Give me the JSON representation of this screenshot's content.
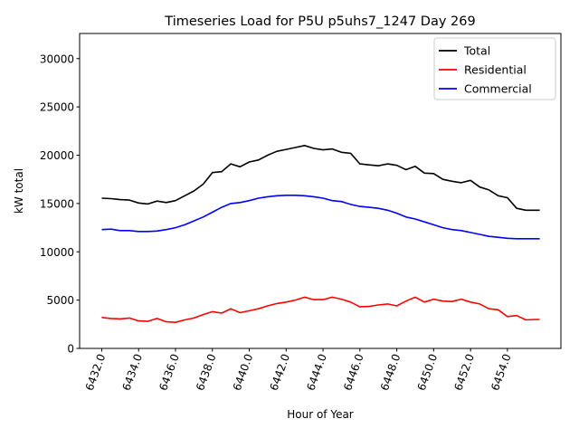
{
  "chart_data": {
    "type": "line",
    "title": "Timeseries Load for P5U p5uhs7_1247  Day 269",
    "xlabel": "Hour of Year",
    "ylabel": "kW total",
    "xlim": [
      6430.8,
      6456.9
    ],
    "ylim": [
      0,
      32600
    ],
    "xticks": [
      6432,
      6434,
      6436,
      6438,
      6440,
      6442,
      6444,
      6446,
      6448,
      6450,
      6452,
      6454
    ],
    "xtick_labels": [
      "6432.0",
      "6434.0",
      "6436.0",
      "6438.0",
      "6440.0",
      "6442.0",
      "6444.0",
      "6446.0",
      "6448.0",
      "6450.0",
      "6452.0",
      "6454.0"
    ],
    "yticks": [
      0,
      5000,
      10000,
      15000,
      20000,
      25000,
      30000
    ],
    "ytick_labels": [
      "0",
      "5000",
      "10000",
      "15000",
      "20000",
      "25000",
      "30000"
    ],
    "grid": false,
    "legend_position": "top-right",
    "x": [
      6432,
      6432.5,
      6433,
      6433.5,
      6434,
      6434.5,
      6435,
      6435.5,
      6436,
      6436.5,
      6437,
      6437.5,
      6438,
      6438.5,
      6439,
      6439.5,
      6440,
      6440.5,
      6441,
      6441.5,
      6442,
      6442.5,
      6443,
      6443.5,
      6444,
      6444.5,
      6445,
      6445.5,
      6446,
      6446.5,
      6447,
      6447.5,
      6448,
      6448.5,
      6449,
      6449.5,
      6450,
      6450.5,
      6451,
      6451.5,
      6452,
      6452.5,
      6453,
      6453.5,
      6454,
      6454.5,
      6455,
      6455.5,
      6455.75
    ],
    "series": [
      {
        "name": "Total",
        "color": "#000000",
        "values": [
          15550,
          15500,
          15400,
          15350,
          15050,
          14950,
          15250,
          15100,
          15300,
          15800,
          16300,
          17000,
          18200,
          18300,
          19100,
          18800,
          19300,
          19500,
          20000,
          20400,
          20600,
          20800,
          21000,
          20700,
          20550,
          20650,
          20300,
          20200,
          19100,
          19000,
          18900,
          19100,
          18950,
          18500,
          18850,
          18150,
          18100,
          17500,
          17300,
          17150,
          17400,
          16700,
          16400,
          15800,
          15600,
          14500,
          14300,
          14300,
          14300
        ]
      },
      {
        "name": "Residential",
        "color": "#ff0000",
        "values": [
          3200,
          3100,
          3050,
          3150,
          2850,
          2800,
          3100,
          2750,
          2700,
          2950,
          3150,
          3500,
          3800,
          3650,
          4100,
          3700,
          3900,
          4100,
          4400,
          4650,
          4800,
          5000,
          5300,
          5050,
          5050,
          5300,
          5100,
          4800,
          4300,
          4350,
          4500,
          4600,
          4400,
          4900,
          5300,
          4800,
          5100,
          4900,
          4850,
          5100,
          4800,
          4600,
          4100,
          4000,
          3300,
          3400,
          2950,
          3000,
          3000
        ]
      },
      {
        "name": "Commercial",
        "color": "#0000ff",
        "values": [
          12300,
          12350,
          12200,
          12200,
          12100,
          12100,
          12150,
          12300,
          12500,
          12800,
          13200,
          13600,
          14100,
          14600,
          15000,
          15100,
          15300,
          15550,
          15700,
          15800,
          15850,
          15850,
          15800,
          15700,
          15550,
          15300,
          15200,
          14900,
          14700,
          14600,
          14500,
          14300,
          14000,
          13600,
          13400,
          13100,
          12800,
          12500,
          12300,
          12200,
          12000,
          11800,
          11600,
          11500,
          11400,
          11350,
          11350,
          11350,
          11350
        ]
      }
    ]
  }
}
